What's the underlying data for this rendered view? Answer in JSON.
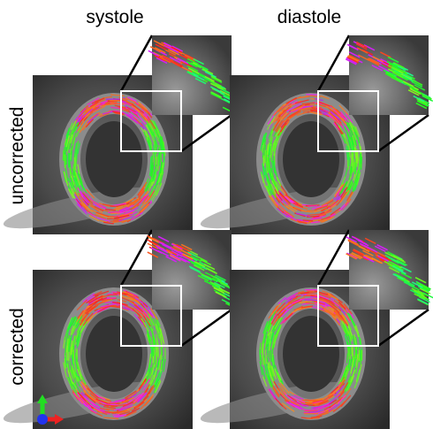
{
  "columns": [
    "systole",
    "diastole"
  ],
  "rows": [
    "uncorrected",
    "corrected"
  ]
}
